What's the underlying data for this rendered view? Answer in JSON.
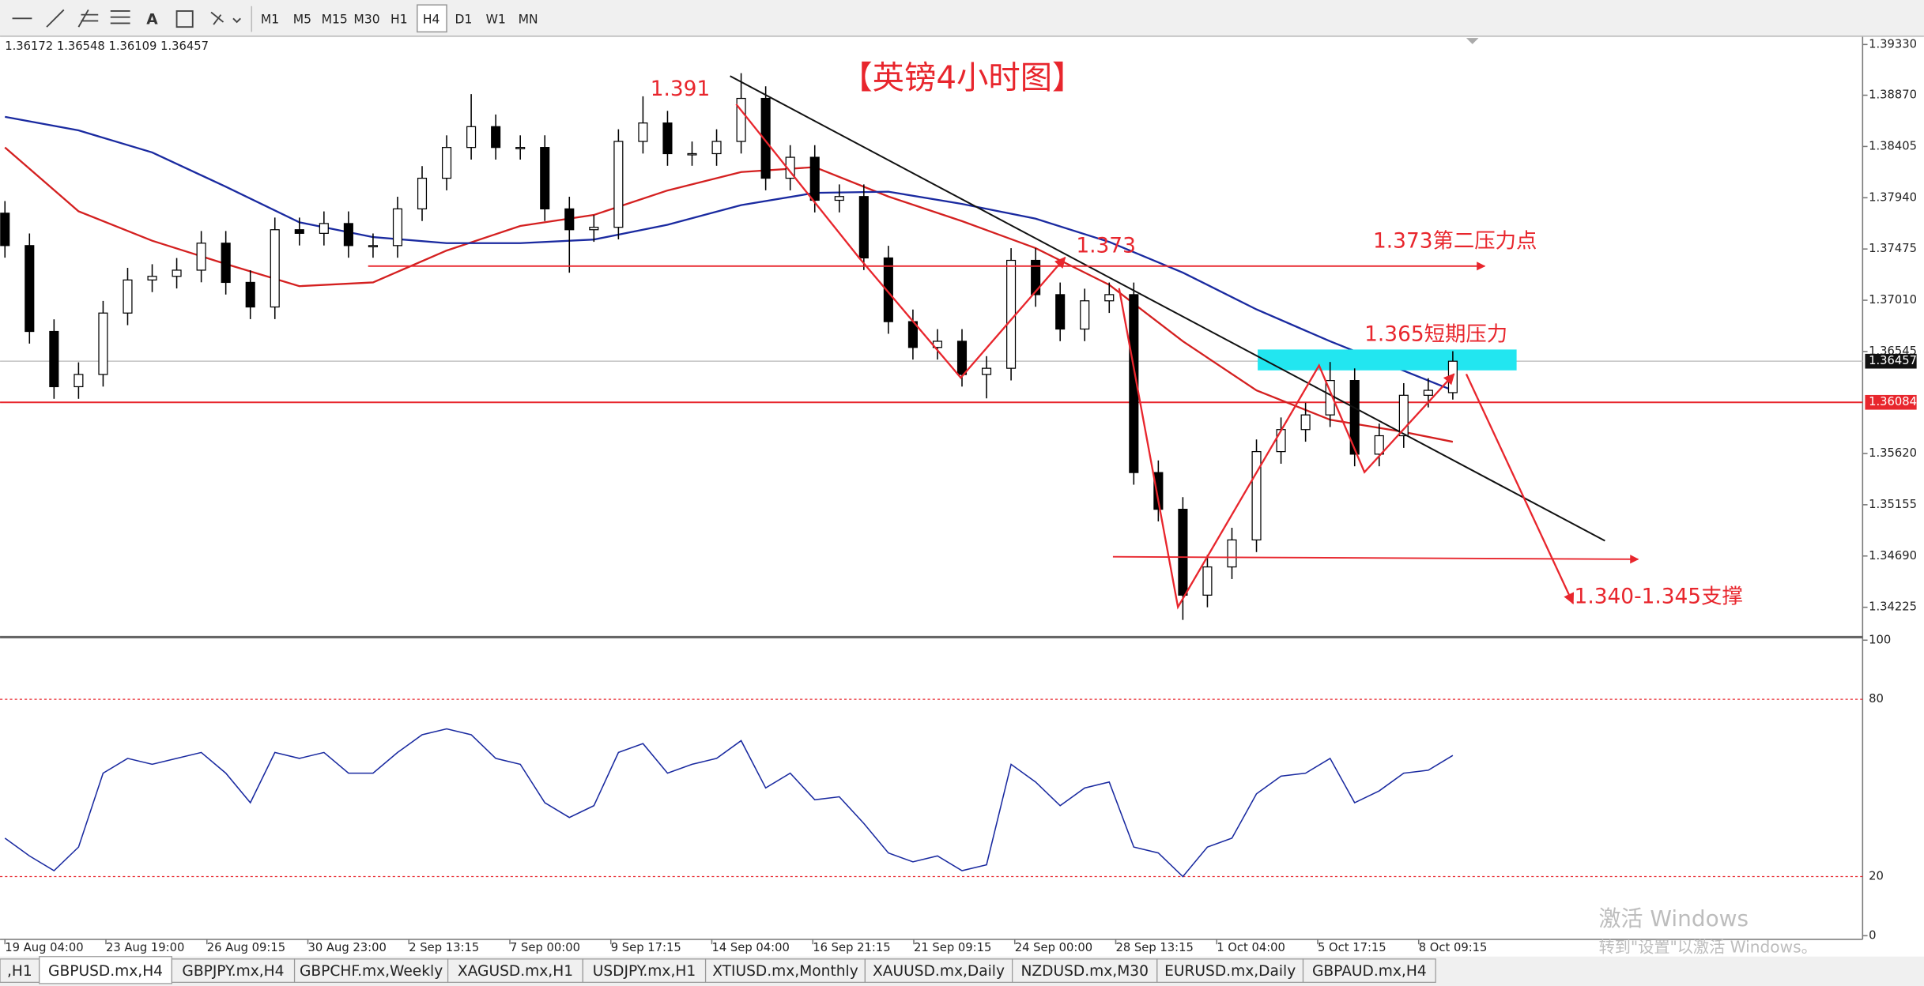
{
  "toolbar": {
    "timeframes": [
      "M1",
      "M5",
      "M15",
      "M30",
      "H1",
      "H4",
      "D1",
      "W1",
      "MN"
    ]
  },
  "chart_data": {
    "type": "candlestick",
    "ohlc_info": "1.36172 1.36548 1.36109 1.36457",
    "open": [
      1.378,
      1.37506,
      1.36727,
      1.36226,
      1.36337,
      1.36894,
      1.37194,
      1.37227,
      1.37283,
      1.37528,
      1.37172,
      1.36949,
      1.3765,
      1.37617,
      1.37706,
      1.37506,
      1.37506,
      1.37839,
      1.38117,
      1.38396,
      1.38585,
      1.38396,
      1.38396,
      1.37839,
      1.3765,
      1.37672,
      1.38451,
      1.38618,
      1.3834,
      1.3834,
      1.38451,
      1.38841,
      1.38117,
      1.38307,
      1.37917,
      1.37951,
      1.37394,
      1.36816,
      1.36582,
      1.36638,
      1.36337,
      1.36393,
      1.37372,
      1.37061,
      1.36749,
      1.37005,
      1.37061,
      1.35447,
      1.35114,
      1.34335,
      1.34591,
      1.34836,
      1.35637,
      1.35837,
      1.3597,
      1.36282,
      1.35614,
      1.35781,
      1.36148,
      1.36172
    ],
    "high": [
      1.3791,
      1.37616,
      1.36837,
      1.36447,
      1.37004,
      1.37304,
      1.37337,
      1.37393,
      1.37638,
      1.37638,
      1.37282,
      1.3776,
      1.3776,
      1.37816,
      1.37816,
      1.37616,
      1.37949,
      1.38227,
      1.38506,
      1.3888,
      1.38695,
      1.38506,
      1.38506,
      1.37949,
      1.37782,
      1.38561,
      1.3886,
      1.38728,
      1.3845,
      1.38561,
      1.3907,
      1.38951,
      1.38417,
      1.38417,
      1.38061,
      1.38061,
      1.37504,
      1.36926,
      1.36748,
      1.36748,
      1.36503,
      1.37482,
      1.37482,
      1.37171,
      1.37115,
      1.37171,
      1.37171,
      1.35557,
      1.35224,
      1.34701,
      1.34946,
      1.35747,
      1.35947,
      1.3608,
      1.3645,
      1.36392,
      1.35891,
      1.36258,
      1.36303,
      1.36548
    ],
    "low": [
      1.37396,
      1.36617,
      1.36116,
      1.36116,
      1.36227,
      1.36784,
      1.37084,
      1.37117,
      1.37173,
      1.37062,
      1.36839,
      1.36839,
      1.37507,
      1.37507,
      1.37396,
      1.37396,
      1.37396,
      1.37729,
      1.38007,
      1.38286,
      1.38286,
      1.38286,
      1.37729,
      1.3726,
      1.3754,
      1.37562,
      1.38341,
      1.3823,
      1.3823,
      1.3823,
      1.38341,
      1.38007,
      1.38007,
      1.37807,
      1.37807,
      1.37284,
      1.36706,
      1.36472,
      1.36472,
      1.36227,
      1.3612,
      1.36283,
      1.36951,
      1.36639,
      1.36639,
      1.36895,
      1.35337,
      1.35004,
      1.3411,
      1.34225,
      1.34481,
      1.34726,
      1.35527,
      1.35727,
      1.3586,
      1.35504,
      1.35504,
      1.35671,
      1.36038,
      1.36109
    ],
    "close": [
      1.37506,
      1.36727,
      1.36226,
      1.36337,
      1.36894,
      1.37194,
      1.37227,
      1.37283,
      1.37528,
      1.37172,
      1.36949,
      1.3765,
      1.37617,
      1.37706,
      1.37506,
      1.37506,
      1.37839,
      1.38117,
      1.38396,
      1.38585,
      1.38396,
      1.38396,
      1.37839,
      1.3765,
      1.37672,
      1.38451,
      1.38618,
      1.3834,
      1.3834,
      1.38451,
      1.38841,
      1.38117,
      1.38307,
      1.37917,
      1.37951,
      1.37394,
      1.36816,
      1.36582,
      1.36638,
      1.36337,
      1.36393,
      1.37372,
      1.37061,
      1.36749,
      1.37005,
      1.37061,
      1.35447,
      1.35114,
      1.34335,
      1.34591,
      1.34836,
      1.35637,
      1.35837,
      1.3597,
      1.36282,
      1.35614,
      1.35781,
      1.36148,
      1.36193,
      1.36457
    ],
    "ylim": [
      1.3396,
      1.394
    ],
    "yticks": [
      {
        "value": 1.3933,
        "label": "1.39330"
      },
      {
        "value": 1.3887,
        "label": "1.38870"
      },
      1.38405,
      {
        "value": 1.3794,
        "label": "1.37940"
      },
      1.37475,
      {
        "value": 1.3701,
        "label": "1.37010"
      },
      1.36545,
      {
        "value": 1.3562,
        "label": "1.35620"
      },
      1.35155,
      {
        "value": 1.3469,
        "label": "1.34690"
      },
      1.34225
    ],
    "current_price": 1.36457,
    "level_line": 1.36084,
    "moving_averages": [
      {
        "color": "#d42020",
        "x": [
          0,
          3,
          6,
          9,
          12,
          15,
          18,
          21,
          24,
          27,
          30,
          33,
          36,
          39,
          42,
          45,
          48,
          51,
          54,
          57,
          59
        ],
        "values": [
          1.38396,
          1.37817,
          1.3755,
          1.37339,
          1.37138,
          1.37172,
          1.37461,
          1.37684,
          1.37784,
          1.38006,
          1.38173,
          1.38218,
          1.37951,
          1.37728,
          1.37483,
          1.3715,
          1.36638,
          1.36193,
          1.35926,
          1.35815,
          1.35726
        ]
      },
      {
        "color": "#1a2aa0",
        "x": [
          0,
          3,
          6,
          9,
          12,
          15,
          18,
          21,
          24,
          27,
          30,
          33,
          36,
          39,
          42,
          45,
          48,
          51,
          54,
          57,
          59
        ],
        "values": [
          1.38674,
          1.38551,
          1.38351,
          1.3804,
          1.37717,
          1.37583,
          1.37528,
          1.37528,
          1.37561,
          1.37695,
          1.37873,
          1.37984,
          1.37995,
          1.37884,
          1.3775,
          1.37539,
          1.37261,
          1.36927,
          1.36638,
          1.36371,
          1.36193
        ]
      }
    ],
    "rsi": {
      "color": "#1a2aa0",
      "values": [
        33,
        27,
        22,
        30,
        55,
        60,
        58,
        60,
        62,
        55,
        45,
        62,
        60,
        62,
        55,
        55,
        62,
        68,
        70,
        68,
        60,
        58,
        45,
        40,
        44,
        62,
        65,
        55,
        58,
        60,
        66,
        50,
        55,
        46,
        47,
        38,
        28,
        25,
        27,
        22,
        24,
        58,
        52,
        44,
        50,
        52,
        30,
        28,
        20,
        30,
        33,
        48,
        54,
        55,
        60,
        45,
        49,
        55,
        56,
        61
      ],
      "ylim": [
        0,
        100
      ],
      "yticks": [
        100,
        80,
        20,
        0
      ]
    },
    "time_labels": [
      "19 Aug 04:00",
      "23 Aug 19:00",
      "26 Aug 09:15",
      "30 Aug 23:00",
      "2 Sep 13:15",
      "7 Sep 00:00",
      "9 Sep 17:15",
      "14 Sep 04:00",
      "16 Sep 21:15",
      "21 Sep 09:15",
      "24 Sep 00:00",
      "28 Sep 13:15",
      "1 Oct 04:00",
      "5 Oct 17:15",
      "8 Oct 09:15"
    ],
    "annotations": [
      "【英镑4小时图】",
      "1.391",
      "1.373",
      "1.373第二压力点",
      "1.365短期压力",
      "1.340-1.345支撑"
    ]
  },
  "tabs": [
    ",H1",
    "GBPUSD.mx,H4",
    "GBPJPY.mx,H4",
    "GBPCHF.mx,Weekly",
    "XAGUSD.mx,H1",
    "USDJPY.mx,H1",
    "XTIUSD.mx,Monthly",
    "XAUUSD.mx,Daily",
    "NZDUSD.mx,M30",
    "EURUSD.mx,Daily",
    "GBPAUD.mx,H4"
  ],
  "watermark": {
    "title": "激活 Windows",
    "subtitle": "转到\"设置\"以激活 Windows。"
  }
}
